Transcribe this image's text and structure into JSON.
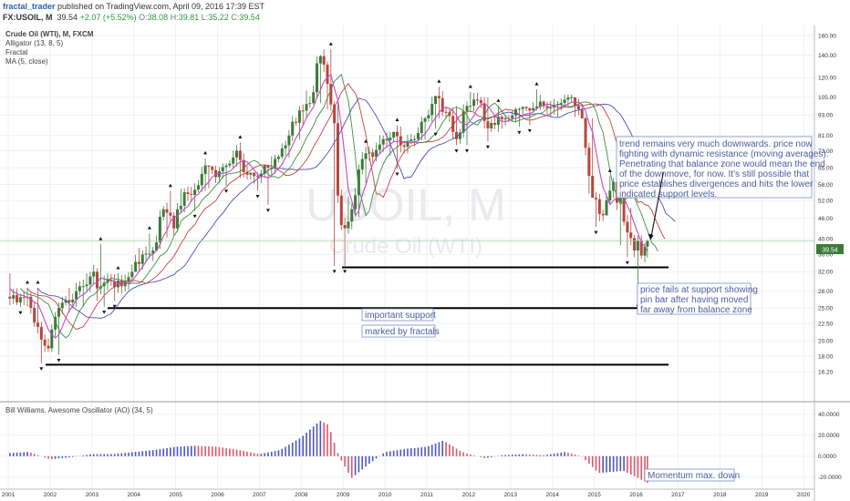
{
  "header": {
    "user": "fractal_trader",
    "published": "published on TradingView.com, April 09, 2016 17:39 EST"
  },
  "symbol_line": {
    "symbol": "FX:USOIL, M",
    "price": "39.54",
    "change": "+2.07 (+5.52%)",
    "o_label": "O:",
    "o_value": "38.08",
    "h_label": "H:",
    "h_value": "39.81",
    "l_label": "L:",
    "l_value": "35.22",
    "c_label": "C:",
    "c_value": "39.54"
  },
  "indicators": [
    "Crude Oil (WTI), M, FXCM",
    "Alligator (13, 8, 5)",
    "Fractal",
    "MA (5, close)"
  ],
  "watermark": {
    "symbol": "USOIL, M",
    "name": "Crude Oil (WTI)"
  },
  "oscillator_label": "Bill Williams. Awesome Oscillator (AO) (34, 5)",
  "colors": {
    "up": "#3d7a3a",
    "down": "#b5463b",
    "ao_up": "#4b56c2",
    "ao_down": "#e0566a",
    "support": "#000000",
    "annotation": "#4a5ea0",
    "ma": "#c548c5",
    "jaw": "#4b4fb3",
    "teeth": "#c8413d",
    "lips": "#3f8f3f"
  },
  "annotations": {
    "trend": [
      "trend remains very much downwards. price now",
      "fighting with dynamic resistance (moving averages).",
      "Penetrating that balance zone would mean the end",
      "of the downmove, for now. It's still possible that",
      "price establishes divergences and hits the lower",
      "indicated support levels."
    ],
    "pinbar": [
      "price fails at support showing",
      "pin bar after having moved",
      "far away from balance zone"
    ],
    "support1": "important support",
    "support2": "marked by fractals",
    "momentum": "Momentum max. down"
  },
  "chart_data": [
    {
      "type": "candlestick",
      "interval": "monthly",
      "yscale": "log",
      "ylim": [
        14.5,
        165
      ],
      "price_label": 39.54,
      "y_ticks": [
        "160.00",
        "140.00",
        "120.00",
        "105.00",
        "93.00",
        "81.00",
        "73.00",
        "65.00",
        "58.00",
        "52.00",
        "46.00",
        "40.00",
        "36.00",
        "32.00",
        "28.00",
        "25.00",
        "22.50",
        "20.00",
        "18.00",
        "16.20"
      ],
      "x_ticks": [
        "2001",
        "2002",
        "2003",
        "2004",
        "2005",
        "2006",
        "2007",
        "2008",
        "2009",
        "2010",
        "2011",
        "2012",
        "2013",
        "2014",
        "2015",
        "2016",
        "2017",
        "2018",
        "2019",
        "2020"
      ],
      "quarterly_ohlc": [
        [
          "2001-Q1",
          27,
          32,
          25.5,
          26
        ],
        [
          "2001-Q2",
          26,
          29,
          25,
          27
        ],
        [
          "2001-Q3",
          27,
          29,
          21,
          22
        ],
        [
          "2001-Q4",
          22,
          23,
          17,
          19
        ],
        [
          "2002-Q1",
          19,
          26,
          18,
          25
        ],
        [
          "2002-Q2",
          25,
          29,
          24,
          26
        ],
        [
          "2002-Q3",
          26,
          30,
          25,
          29
        ],
        [
          "2002-Q4",
          29,
          32,
          25,
          31
        ],
        [
          "2003-Q1",
          31,
          39,
          26,
          29
        ],
        [
          "2003-Q2",
          29,
          32,
          25,
          30
        ],
        [
          "2003-Q3",
          30,
          32,
          26,
          29
        ],
        [
          "2003-Q4",
          29,
          34,
          28,
          32
        ],
        [
          "2004-Q1",
          32,
          38,
          32,
          36
        ],
        [
          "2004-Q2",
          36,
          42,
          34,
          37
        ],
        [
          "2004-Q3",
          37,
          50,
          37,
          49
        ],
        [
          "2004-Q4",
          49,
          56,
          40,
          43
        ],
        [
          "2005-Q1",
          43,
          57,
          42,
          55
        ],
        [
          "2005-Q2",
          55,
          59,
          48,
          56
        ],
        [
          "2005-Q3",
          56,
          70,
          55,
          66
        ],
        [
          "2005-Q4",
          66,
          66,
          56,
          61
        ],
        [
          "2006-Q1",
          61,
          67,
          57,
          66
        ],
        [
          "2006-Q2",
          66,
          76,
          65,
          73
        ],
        [
          "2006-Q3",
          73,
          78,
          60,
          62
        ],
        [
          "2006-Q4",
          62,
          63,
          55,
          61
        ],
        [
          "2007-Q1",
          61,
          66,
          50,
          65
        ],
        [
          "2007-Q2",
          65,
          71,
          61,
          70
        ],
        [
          "2007-Q3",
          70,
          84,
          69,
          81
        ],
        [
          "2007-Q4",
          81,
          99,
          78,
          96
        ],
        [
          "2008-Q1",
          96,
          111,
          86,
          101
        ],
        [
          "2008-Q2",
          101,
          140,
          100,
          139
        ],
        [
          "2008-Q3",
          139,
          147,
          96,
          100
        ],
        [
          "2008-Q4",
          100,
          102,
          33,
          44
        ],
        [
          "2009-Q1",
          44,
          54,
          33,
          49
        ],
        [
          "2009-Q2",
          49,
          73,
          46,
          69
        ],
        [
          "2009-Q3",
          69,
          75,
          58,
          70
        ],
        [
          "2009-Q4",
          70,
          82,
          68,
          79
        ],
        [
          "2010-Q1",
          79,
          83,
          70,
          83
        ],
        [
          "2010-Q2",
          83,
          87,
          64,
          75
        ],
        [
          "2010-Q3",
          75,
          82,
          71,
          79
        ],
        [
          "2010-Q4",
          79,
          92,
          78,
          91
        ],
        [
          "2011-Q1",
          91,
          106,
          84,
          106
        ],
        [
          "2011-Q2",
          106,
          114,
          90,
          95
        ],
        [
          "2011-Q3",
          95,
          100,
          75,
          79
        ],
        [
          "2011-Q4",
          79,
          102,
          75,
          99
        ],
        [
          "2012-Q1",
          99,
          110,
          95,
          103
        ],
        [
          "2012-Q2",
          103,
          106,
          77,
          85
        ],
        [
          "2012-Q3",
          85,
          100,
          83,
          92
        ],
        [
          "2012-Q4",
          92,
          93,
          84,
          91
        ],
        [
          "2013-Q1",
          91,
          98,
          85,
          97
        ],
        [
          "2013-Q2",
          97,
          98,
          86,
          96
        ],
        [
          "2013-Q3",
          96,
          112,
          96,
          102
        ],
        [
          "2013-Q4",
          102,
          103,
          91,
          98
        ],
        [
          "2014-Q1",
          98,
          104,
          91,
          101
        ],
        [
          "2014-Q2",
          101,
          107,
          99,
          105
        ],
        [
          "2014-Q3",
          105,
          105,
          91,
          91
        ],
        [
          "2014-Q4",
          91,
          92,
          54,
          53
        ],
        [
          "2015-Q1",
          53,
          55,
          43,
          47
        ],
        [
          "2015-Q2",
          47,
          62,
          47,
          59
        ],
        [
          "2015-Q3",
          59,
          60,
          38,
          45
        ],
        [
          "2015-Q4",
          45,
          50,
          35,
          37
        ],
        [
          "2016-Q1",
          37,
          41,
          26,
          38
        ],
        [
          "2016-Q2",
          38,
          39.81,
          35.22,
          39.54
        ]
      ],
      "support_levels": [
        33,
        25,
        17
      ],
      "resistance_arrow": {
        "from_year": 2016.35,
        "from_price": 40,
        "to_year": 2016.65,
        "to_price": 63
      }
    },
    {
      "type": "bar",
      "name": "Awesome Oscillator (AO) (34, 5)",
      "ylim": [
        -28,
        46
      ],
      "y_ticks": [
        "40.0000",
        "20.0000",
        "0.0000",
        "-20.0000"
      ],
      "x_ticks": [
        "2001",
        "2002",
        "2003",
        "2004",
        "2005",
        "2006",
        "2007",
        "2008",
        "2009",
        "2010",
        "2011",
        "2012",
        "2013",
        "2014",
        "2015",
        "2016",
        "2017",
        "2018",
        "2019",
        "2020"
      ],
      "keypoints": [
        [
          2001,
          3
        ],
        [
          2001.5,
          4
        ],
        [
          2002,
          -3
        ],
        [
          2002.5,
          -1
        ],
        [
          2003,
          2
        ],
        [
          2003.5,
          2
        ],
        [
          2004,
          4
        ],
        [
          2004.5,
          6
        ],
        [
          2005,
          9
        ],
        [
          2005.5,
          10
        ],
        [
          2006,
          9
        ],
        [
          2006.5,
          6
        ],
        [
          2007,
          2
        ],
        [
          2007.5,
          6
        ],
        [
          2008,
          18
        ],
        [
          2008.45,
          34
        ],
        [
          2008.65,
          30
        ],
        [
          2008.9,
          0
        ],
        [
          2009.2,
          -21
        ],
        [
          2009.6,
          -8
        ],
        [
          2010,
          4
        ],
        [
          2010.5,
          7
        ],
        [
          2011,
          9
        ],
        [
          2011.4,
          15
        ],
        [
          2011.8,
          5
        ],
        [
          2012,
          2
        ],
        [
          2012.4,
          -2
        ],
        [
          2012.8,
          1
        ],
        [
          2013.3,
          2
        ],
        [
          2013.8,
          1
        ],
        [
          2014.3,
          4
        ],
        [
          2014.7,
          0
        ],
        [
          2015.1,
          -16
        ],
        [
          2015.7,
          -14
        ],
        [
          2016.1,
          -22
        ],
        [
          2016.3,
          -26
        ]
      ]
    }
  ]
}
